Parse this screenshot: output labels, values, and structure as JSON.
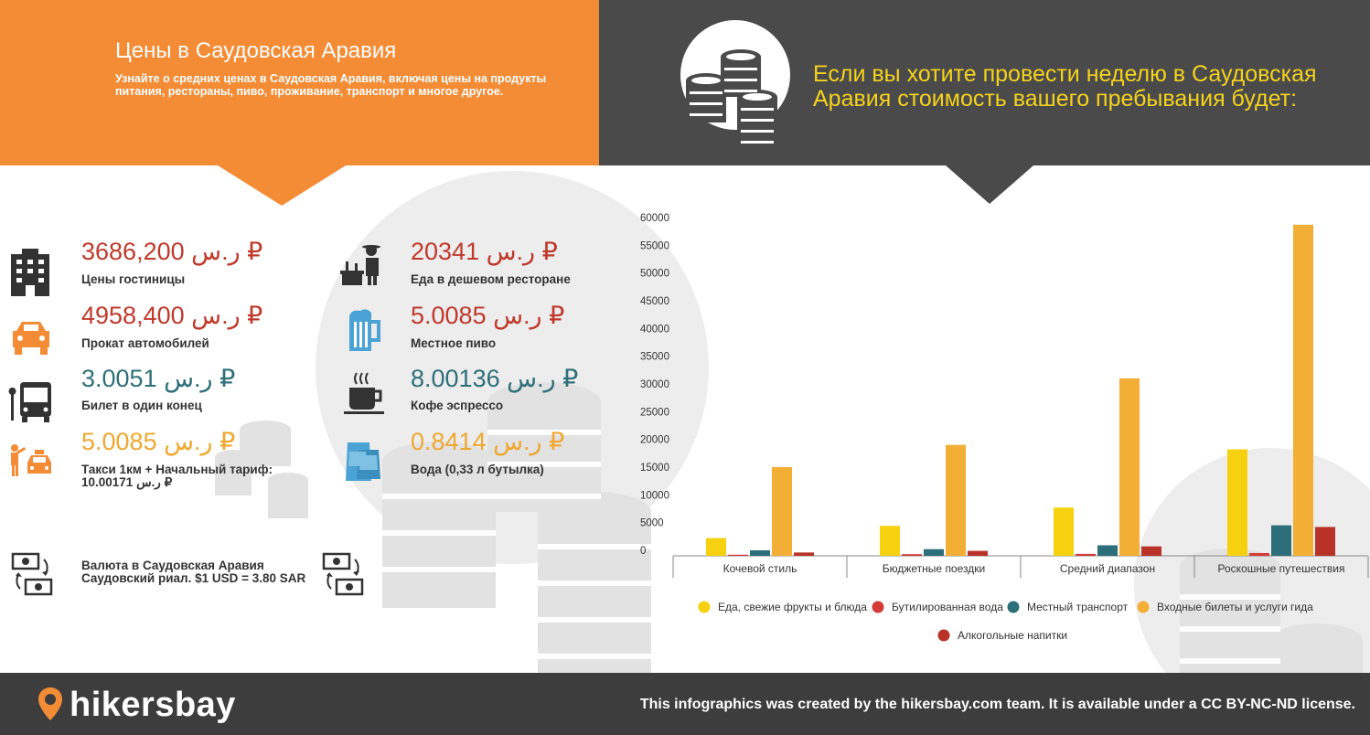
{
  "header": {
    "title": "Цены в Саудовская Аравия",
    "subtitle": "Узнайте о средних ценах в Саудовская Аравия, включая цены на продукты питания, рестораны, пиво, проживание, транспорт и многое другое.",
    "week_text": "Если вы хотите провести неделю в Саудовская Аравия стоимость вашего пребывания будет:"
  },
  "prices": [
    {
      "value": "3686,200 ر.س ₽",
      "label": "Цены гостиницы",
      "color": "#c0392b",
      "icon": "hotel-icon"
    },
    {
      "value": "20341 ر.س ₽",
      "label": "Еда в дешевом ресторане",
      "color": "#c0392b",
      "icon": "restaurant-icon"
    },
    {
      "value": "4958,400 ر.س ₽",
      "label": "Прокат автомобилей",
      "color": "#c0392b",
      "icon": "car-icon"
    },
    {
      "value": "5.0085 ر.س ₽",
      "label": "Местное пиво",
      "color": "#c0392b",
      "icon": "beer-icon"
    },
    {
      "value": "3.0051 ر.س ₽",
      "label": "Билет в один конец",
      "color": "#2e6f7a",
      "icon": "bus-icon"
    },
    {
      "value": "8.00136 ر.س ₽",
      "label": "Кофе эспрессо",
      "color": "#2e6f7a",
      "icon": "coffee-icon"
    },
    {
      "value": "5.0085 ر.س ₽",
      "label": "Такси 1км + Начальный тариф:",
      "label2": "10.00171 ر.س ₽",
      "color": "#f0a830",
      "icon": "taxi-icon"
    },
    {
      "value": "0.8414 ر.س ₽",
      "label": "Вода (0,33 л бутылка)",
      "color": "#f0a830",
      "icon": "water-icon"
    }
  ],
  "currency": {
    "line1": "Валюта в Саудовская Аравия",
    "line2": "Саудовский риал. $1 USD = 3.80 SAR"
  },
  "chart_data": {
    "type": "bar",
    "categories": [
      "Кочевой стиль",
      "Бюджетные поездки",
      "Средний диапазон",
      "Роскошные путешествия"
    ],
    "series": [
      {
        "name": "Еда, свежие фрукты и блюда",
        "color": "#f5d10f",
        "values": [
          3200,
          5400,
          8700,
          19200
        ]
      },
      {
        "name": "Бутилированная вода",
        "color": "#d33b36",
        "values": [
          200,
          300,
          350,
          500
        ]
      },
      {
        "name": "Местный транспорт",
        "color": "#2c6e7a",
        "values": [
          1000,
          1200,
          1900,
          5500
        ]
      },
      {
        "name": "Входные билеты и услуги гида",
        "color": "#f2ae35",
        "values": [
          16000,
          20000,
          32000,
          59700
        ]
      },
      {
        "name": "Алкогольные напитки",
        "color": "#b83228",
        "values": [
          600,
          900,
          1700,
          5200
        ]
      }
    ],
    "y_ticks": [
      "0",
      "5000",
      "10000",
      "15000",
      "20000",
      "25000",
      "30000",
      "35000",
      "40000",
      "45000",
      "50000",
      "55000",
      "60000"
    ],
    "ylim": [
      0,
      60000
    ],
    "grid": false,
    "legend_position": "bottom"
  },
  "footer": {
    "brand": "hikersbay",
    "license": "This infographics was created by the hikersbay.com team. It is available under a CC BY-NC-ND license."
  },
  "colors": {
    "orange": "#f48c36",
    "dark": "#4a4a4a",
    "yellow": "#f5d31b",
    "footer": "#3d3d3d"
  }
}
